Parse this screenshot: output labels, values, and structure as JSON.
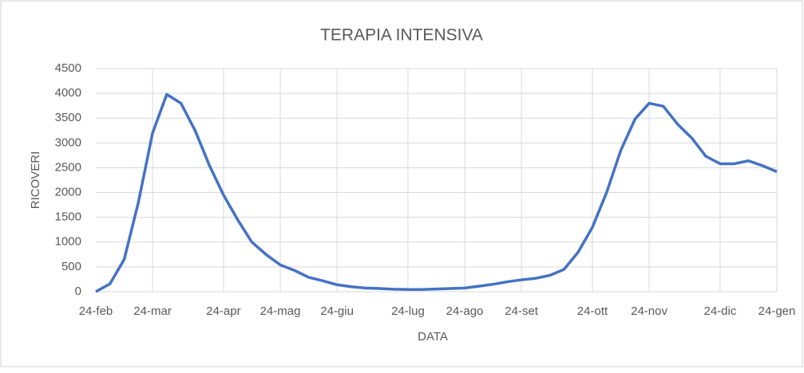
{
  "chart_data": {
    "type": "line",
    "title": "TERAPIA INTENSIVA",
    "x_label": "DATA",
    "y_label": "RICOVERI",
    "categories": [
      "24-feb",
      null,
      null,
      null,
      "24-mar",
      null,
      null,
      null,
      null,
      "24-apr",
      null,
      null,
      null,
      "24-mag",
      null,
      null,
      null,
      "24-giu",
      null,
      null,
      null,
      null,
      "24-lug",
      null,
      null,
      null,
      "24-ago",
      null,
      null,
      null,
      "24-set",
      null,
      null,
      null,
      null,
      "24-ott",
      null,
      null,
      null,
      "24-nov",
      null,
      null,
      null,
      null,
      "24-dic",
      null,
      null,
      null,
      "24-gen"
    ],
    "series": [
      {
        "name": "RICOVERI",
        "color": "#4472c4",
        "values": [
          0,
          160,
          650,
          1800,
          3200,
          3980,
          3800,
          3250,
          2550,
          1950,
          1450,
          1000,
          750,
          540,
          430,
          290,
          220,
          140,
          100,
          75,
          65,
          50,
          45,
          45,
          55,
          65,
          75,
          110,
          150,
          200,
          240,
          270,
          330,
          450,
          800,
          1300,
          2000,
          2850,
          3480,
          3800,
          3740,
          3380,
          3100,
          2730,
          2580,
          2580,
          2640,
          2540,
          2420
        ]
      }
    ],
    "ylim": [
      0,
      4500
    ],
    "yticks": [
      0,
      500,
      1000,
      1500,
      2000,
      2500,
      3000,
      3500,
      4000,
      4500
    ],
    "grid": true
  }
}
